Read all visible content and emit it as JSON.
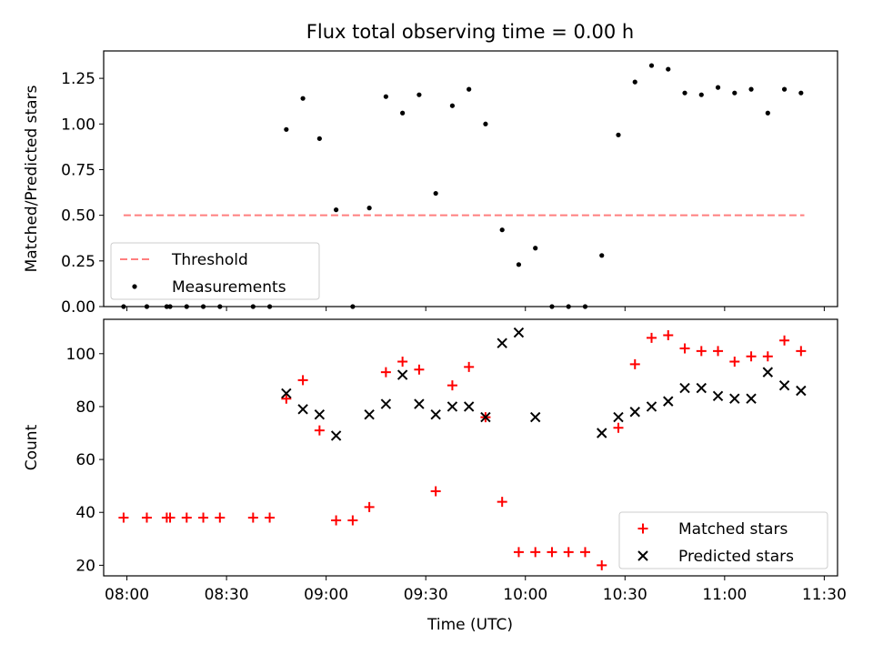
{
  "figure": {
    "title": "Flux total observing time = 0.00 h",
    "xlabel": "Time (UTC)"
  },
  "chart_data": [
    {
      "type": "scatter",
      "ylabel": "Matched/Predicted stars",
      "xlim": [
        "07:53",
        "11:34"
      ],
      "ylim": [
        0,
        1.4
      ],
      "x_ticks": [],
      "y_ticks": [
        "0.00",
        "0.25",
        "0.50",
        "0.75",
        "1.00",
        "1.25"
      ],
      "grid": false,
      "legend": [
        "Threshold",
        "Measurements"
      ],
      "legend_position": "lower-left",
      "threshold": {
        "name": "Threshold",
        "value": 0.5,
        "x_start": "07:59",
        "x_end": "11:24",
        "color": "#ff7f7f",
        "style": "dashed"
      },
      "series": [
        {
          "name": "Measurements",
          "marker": "dot",
          "color": "#000000",
          "x": [
            "07:59",
            "08:06",
            "08:12",
            "08:13",
            "08:18",
            "08:23",
            "08:28",
            "08:38",
            "08:43",
            "08:48",
            "08:53",
            "08:58",
            "09:03",
            "09:08",
            "09:13",
            "09:18",
            "09:23",
            "09:28",
            "09:33",
            "09:38",
            "09:43",
            "09:48",
            "09:53",
            "09:58",
            "10:03",
            "10:08",
            "10:13",
            "10:18",
            "10:23",
            "10:28",
            "10:33",
            "10:38",
            "10:43",
            "10:48",
            "10:53",
            "10:58",
            "11:03",
            "11:08",
            "11:13",
            "11:18",
            "11:23"
          ],
          "y": [
            0,
            0,
            0,
            0,
            0,
            0,
            0,
            0,
            0,
            0.97,
            1.14,
            0.92,
            0.53,
            0,
            0.54,
            1.15,
            1.06,
            1.16,
            0.62,
            1.1,
            1.19,
            1.0,
            0.42,
            0.23,
            0.32,
            0,
            0,
            0,
            0.28,
            0.94,
            1.23,
            1.32,
            1.3,
            1.17,
            1.16,
            1.2,
            1.17,
            1.19,
            1.06,
            1.19,
            1.17
          ]
        }
      ]
    },
    {
      "type": "scatter",
      "ylabel": "Count",
      "xlim": [
        "07:53",
        "11:34"
      ],
      "ylim": [
        16,
        113
      ],
      "x_ticks": [
        "08:00",
        "08:30",
        "09:00",
        "09:30",
        "10:00",
        "10:30",
        "11:00",
        "11:30"
      ],
      "y_ticks": [
        "20",
        "40",
        "60",
        "80",
        "100"
      ],
      "grid": false,
      "legend": [
        "Matched stars",
        "Predicted stars"
      ],
      "legend_position": "lower-right",
      "series": [
        {
          "name": "Matched stars",
          "marker": "plus",
          "color": "#ff0000",
          "x": [
            "07:59",
            "08:06",
            "08:12",
            "08:13",
            "08:18",
            "08:23",
            "08:28",
            "08:38",
            "08:43",
            "08:48",
            "08:53",
            "08:58",
            "09:03",
            "09:08",
            "09:13",
            "09:18",
            "09:23",
            "09:28",
            "09:33",
            "09:38",
            "09:43",
            "09:48",
            "09:53",
            "09:58",
            "10:03",
            "10:08",
            "10:13",
            "10:18",
            "10:23",
            "10:28",
            "10:33",
            "10:38",
            "10:43",
            "10:48",
            "10:53",
            "10:58",
            "11:03",
            "11:08",
            "11:13",
            "11:18",
            "11:23"
          ],
          "y": [
            38,
            38,
            38,
            38,
            38,
            38,
            38,
            38,
            38,
            83,
            90,
            71,
            37,
            37,
            42,
            93,
            97,
            94,
            48,
            88,
            95,
            76,
            44,
            25,
            25,
            25,
            25,
            25,
            20,
            72,
            96,
            106,
            107,
            102,
            101,
            101,
            97,
            99,
            99,
            105,
            101
          ]
        },
        {
          "name": "Predicted stars",
          "marker": "x",
          "color": "#000000",
          "x": [
            "08:48",
            "08:53",
            "08:58",
            "09:03",
            "09:13",
            "09:18",
            "09:23",
            "09:28",
            "09:33",
            "09:38",
            "09:43",
            "09:48",
            "09:53",
            "09:58",
            "10:03",
            "10:23",
            "10:28",
            "10:33",
            "10:38",
            "10:43",
            "10:48",
            "10:53",
            "10:58",
            "11:03",
            "11:08",
            "11:13",
            "11:18",
            "11:23"
          ],
          "y": [
            85,
            79,
            77,
            69,
            77,
            81,
            92,
            81,
            77,
            80,
            80,
            76,
            104,
            108,
            76,
            70,
            76,
            78,
            80,
            82,
            87,
            87,
            84,
            83,
            83,
            93,
            88,
            86
          ]
        }
      ]
    }
  ]
}
